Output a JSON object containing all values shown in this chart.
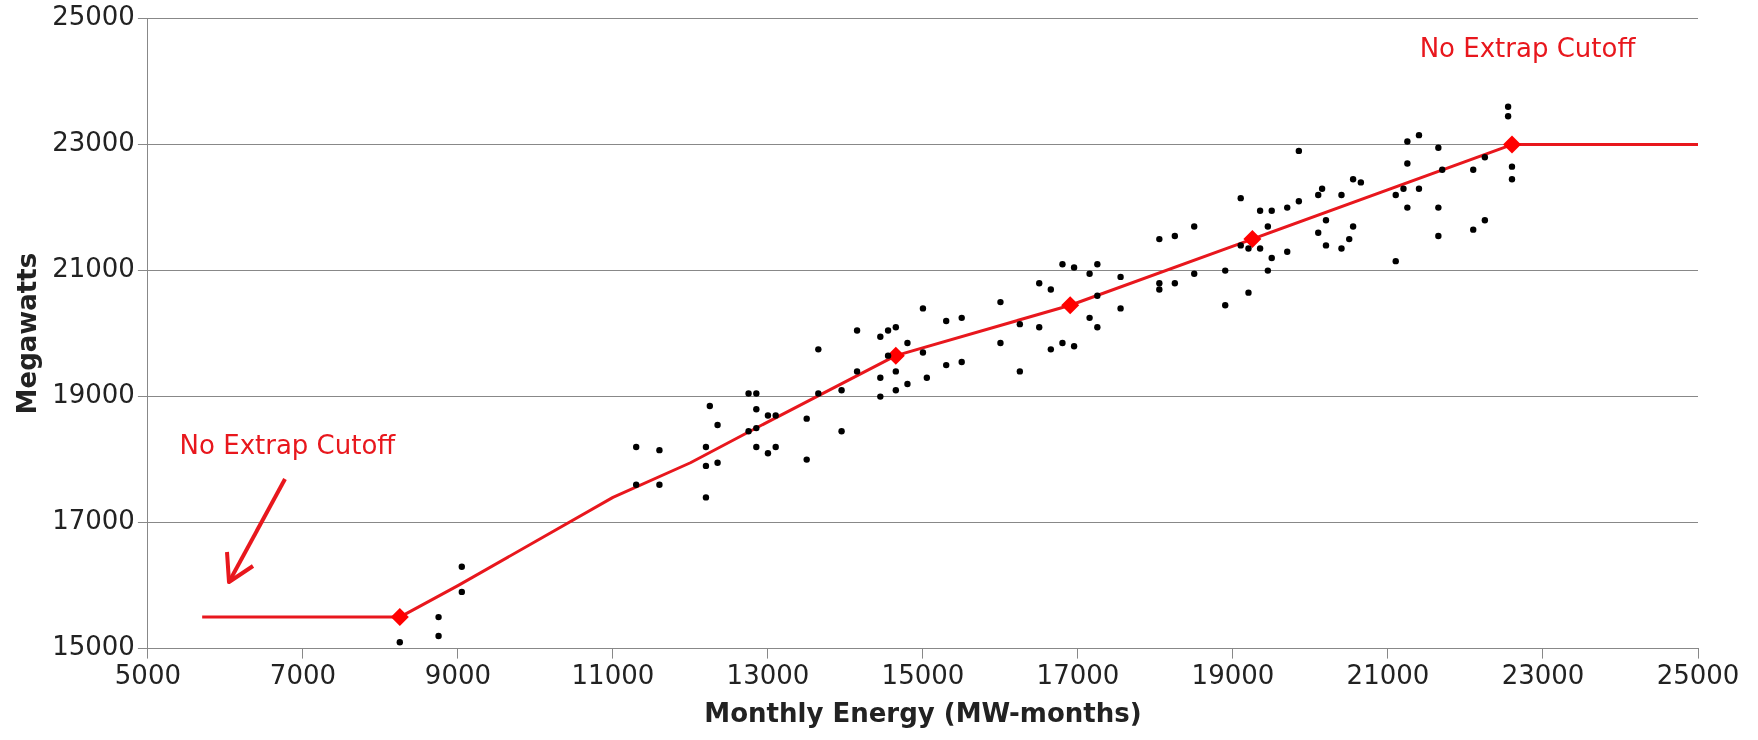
{
  "chart_data": {
    "type": "scatter",
    "xlabel": "Monthly Energy (MW-months)",
    "ylabel": "Megawatts",
    "xlim": [
      5000,
      25000
    ],
    "xticks": [
      5000,
      7000,
      9000,
      11000,
      13000,
      15000,
      17000,
      19000,
      21000,
      23000,
      25000
    ],
    "ylim": [
      15000,
      25000
    ],
    "yticks": [
      15000,
      17000,
      19000,
      21000,
      23000,
      25000
    ],
    "grid": "y",
    "legend": false,
    "series": [
      {
        "type": "scatter",
        "marker": "circle",
        "color": "#000000",
        "x": [
          8250,
          8750,
          8750,
          9050,
          9050,
          11300,
          11300,
          11600,
          11600,
          12200,
          12200,
          12200,
          12250,
          12350,
          12350,
          12750,
          12750,
          12850,
          12850,
          12850,
          12850,
          13000,
          13000,
          13100,
          13100,
          13500,
          13500,
          13650,
          13650,
          13950,
          13950,
          14150,
          14150,
          14450,
          14450,
          14450,
          14550,
          14550,
          14650,
          14650,
          14650,
          14800,
          14800,
          15000,
          15000,
          15050,
          15300,
          15300,
          15500,
          15500,
          16000,
          16000,
          16250,
          16250,
          16500,
          16500,
          16650,
          16650,
          16800,
          16800,
          16950,
          16950,
          17150,
          17150,
          17250,
          17250,
          17250,
          17550,
          17550,
          18050,
          18050,
          18050,
          18250,
          18250,
          18500,
          18500,
          18900,
          18900,
          19100,
          19100,
          19200,
          19200,
          19350,
          19350,
          19450,
          19450,
          19500,
          19500,
          19700,
          19700,
          19850,
          19850,
          20100,
          20100,
          20150,
          20200,
          20200,
          20400,
          20400,
          20500,
          20550,
          20550,
          20650,
          21100,
          21100,
          21200,
          21250,
          21250,
          21250,
          21400,
          21400,
          21650,
          21650,
          21650,
          21700,
          22100,
          22100,
          22250,
          22250,
          22550,
          22550,
          22600,
          22600
        ],
        "values": [
          15100,
          15200,
          15500,
          15900,
          16300,
          17600,
          18200,
          17600,
          18150,
          17400,
          17900,
          18200,
          18850,
          18550,
          17950,
          19050,
          18450,
          19050,
          18800,
          18500,
          18200,
          18700,
          18100,
          18700,
          18200,
          18650,
          18000,
          19750,
          19050,
          19100,
          18450,
          20050,
          19400,
          19950,
          19300,
          19000,
          20050,
          19650,
          20100,
          19400,
          19100,
          19850,
          19200,
          20400,
          19700,
          19300,
          20200,
          19500,
          20250,
          19550,
          20500,
          19850,
          19400,
          20150,
          20800,
          20100,
          20700,
          19750,
          21100,
          19850,
          21050,
          19800,
          20950,
          20250,
          21100,
          20600,
          20100,
          20900,
          20400,
          21500,
          20800,
          20700,
          21550,
          20800,
          21700,
          20950,
          21000,
          20450,
          22150,
          21400,
          21350,
          20650,
          21950,
          21350,
          21700,
          21000,
          21950,
          21200,
          22000,
          21300,
          22900,
          22100,
          22200,
          21600,
          22300,
          21800,
          21400,
          22200,
          21350,
          21500,
          22450,
          21700,
          22400,
          22200,
          21150,
          22300,
          23050,
          22700,
          22000,
          23150,
          22300,
          22950,
          22000,
          21550,
          22600,
          22600,
          21650,
          22800,
          21800,
          23600,
          23450,
          22650,
          22450
        ]
      },
      {
        "type": "line",
        "marker": "none",
        "line_style": "solid",
        "color": "#e8171d",
        "x": [
          5700,
          8250,
          9000,
          10000,
          11000,
          12000,
          13000,
          14650,
          16900,
          19250,
          22600,
          25000
        ],
        "values": [
          15500,
          15500,
          16000,
          16700,
          17400,
          17950,
          18600,
          19650,
          20450,
          21500,
          23000,
          23000
        ]
      },
      {
        "type": "scatter",
        "marker": "diamond",
        "color": "#ff0000",
        "x": [
          8250,
          14650,
          16900,
          19250,
          22600
        ],
        "values": [
          15500,
          19650,
          20450,
          21500,
          23000
        ]
      }
    ],
    "annotations": [
      "No Extrap Cutoff",
      "No Extrap Cutoff"
    ]
  }
}
